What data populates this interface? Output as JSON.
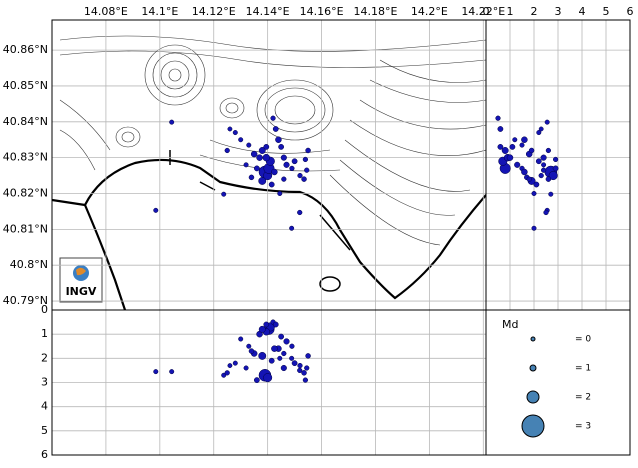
{
  "chart_data": {
    "type": "scatter",
    "x": [
      14.1044,
      14.0985,
      14.1237,
      14.1489,
      14.1519,
      14.139,
      14.14,
      14.138,
      14.1405,
      14.141,
      14.1395,
      14.137,
      14.135,
      14.133,
      14.13,
      14.128,
      14.126,
      14.125,
      14.142,
      14.143,
      14.145,
      14.147,
      14.149,
      14.15,
      14.152,
      14.1535,
      14.1545,
      14.154,
      14.155,
      14.144,
      14.136,
      14.132,
      14.134,
      14.1415,
      14.146,
      14.138,
      14.1395,
      14.1425,
      14.1445,
      14.146
    ],
    "y": [
      40.8399,
      40.8153,
      40.8198,
      40.8103,
      40.8147,
      40.826,
      40.825,
      40.8235,
      40.827,
      40.829,
      40.83,
      40.83,
      40.831,
      40.8335,
      40.835,
      40.837,
      40.838,
      40.832,
      40.841,
      40.838,
      40.833,
      40.828,
      40.827,
      40.829,
      40.825,
      40.824,
      40.8265,
      40.8295,
      40.832,
      40.835,
      40.827,
      40.828,
      40.8245,
      40.8225,
      40.824,
      40.832,
      40.833,
      40.826,
      40.82,
      40.83
    ],
    "depth": [
      2.55,
      2.55,
      2.7,
      2.0,
      2.5,
      2.7,
      2.8,
      1.9,
      0.8,
      0.7,
      0.9,
      1.0,
      1.8,
      1.5,
      1.2,
      2.2,
      2.3,
      2.6,
      0.5,
      0.6,
      1.1,
      1.3,
      1.5,
      2.2,
      2.3,
      2.6,
      2.4,
      2.9,
      1.9,
      1.6,
      2.9,
      2.4,
      1.7,
      2.1,
      1.8,
      0.8,
      0.6,
      1.6,
      2.0,
      2.4
    ],
    "md": [
      0.5,
      0.5,
      0.5,
      0.5,
      0.6,
      2.0,
      1.5,
      1.3,
      1.8,
      1.5,
      1.2,
      1.0,
      1.0,
      0.5,
      0.5,
      0.5,
      0.4,
      0.6,
      0.6,
      0.8,
      0.8,
      0.9,
      0.6,
      0.8,
      0.6,
      0.7,
      0.6,
      0.6,
      0.7,
      1.0,
      0.8,
      0.5,
      0.7,
      0.8,
      0.6,
      1.1,
      0.8,
      1.0,
      0.5,
      0.9
    ],
    "color": "#1414b4",
    "xlim": [
      14.06,
      14.221
    ],
    "ylim": [
      40.7875,
      40.8684
    ],
    "xticks": [
      {
        "value": 14.08,
        "label": "14.08°E"
      },
      {
        "value": 14.1,
        "label": "14.1°E"
      },
      {
        "value": 14.12,
        "label": "14.12°E"
      },
      {
        "value": 14.14,
        "label": "14.14°E"
      },
      {
        "value": 14.16,
        "label": "14.16°E"
      },
      {
        "value": 14.18,
        "label": "14.18°E"
      },
      {
        "value": 14.2,
        "label": "14.2°E"
      },
      {
        "value": 14.22,
        "label": "14.22°E"
      }
    ],
    "yticks": [
      {
        "value": 40.79,
        "label": "40.79°N"
      },
      {
        "value": 40.8,
        "label": "40.8°N"
      },
      {
        "value": 40.81,
        "label": "40.81°N"
      },
      {
        "value": 40.82,
        "label": "40.82°N"
      },
      {
        "value": 40.83,
        "label": "40.83°N"
      },
      {
        "value": 40.84,
        "label": "40.84°N"
      },
      {
        "value": 40.85,
        "label": "40.85°N"
      },
      {
        "value": 40.86,
        "label": "40.86°N"
      }
    ],
    "zlim": [
      0,
      6
    ],
    "zticks": [
      0,
      1,
      2,
      3,
      4,
      5,
      6
    ],
    "grid": true,
    "legend": {
      "title": "Md",
      "color": "#4682b4",
      "entries": [
        {
          "value": 0,
          "label": "= 0"
        },
        {
          "value": 1,
          "label": "= 1"
        },
        {
          "value": 2,
          "label": "= 2"
        },
        {
          "value": 3,
          "label": "= 3"
        }
      ]
    },
    "logo": "INGV"
  }
}
